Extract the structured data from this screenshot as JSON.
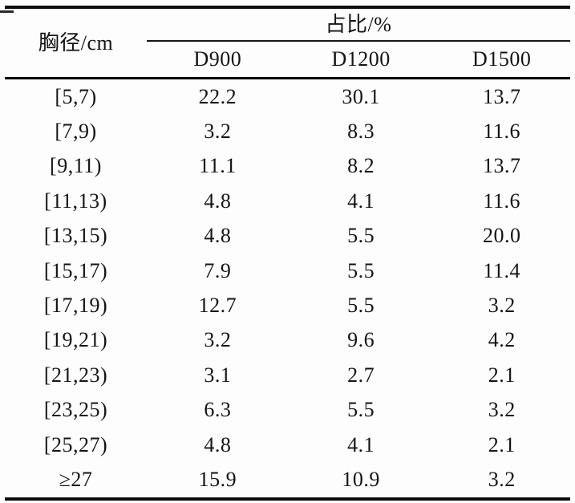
{
  "meta": {
    "background_color": "#fdfdfd",
    "text_color": "#141414",
    "rule_color": "#0c0c0c"
  },
  "table": {
    "row_header_label": "胸径/cm",
    "span_header_label": "占比/%",
    "column_headers": [
      "D900",
      "D1200",
      "D1500"
    ],
    "rows": [
      {
        "range": "[5,7)",
        "values": [
          "22.2",
          "30.1",
          "13.7"
        ]
      },
      {
        "range": "[7,9)",
        "values": [
          "3.2",
          "8.3",
          "11.6"
        ]
      },
      {
        "range": "[9,11)",
        "values": [
          "11.1",
          "8.2",
          "13.7"
        ]
      },
      {
        "range": "[11,13)",
        "values": [
          "4.8",
          "4.1",
          "11.6"
        ]
      },
      {
        "range": "[13,15)",
        "values": [
          "4.8",
          "5.5",
          "20.0"
        ]
      },
      {
        "range": "[15,17)",
        "values": [
          "7.9",
          "5.5",
          "11.4"
        ]
      },
      {
        "range": "[17,19)",
        "values": [
          "12.7",
          "5.5",
          "3.2"
        ]
      },
      {
        "range": "[19,21)",
        "values": [
          "3.2",
          "9.6",
          "4.2"
        ]
      },
      {
        "range": "[21,23)",
        "values": [
          "3.1",
          "2.7",
          "2.1"
        ]
      },
      {
        "range": "[23,25)",
        "values": [
          "6.3",
          "5.5",
          "3.2"
        ]
      },
      {
        "range": "[25,27)",
        "values": [
          "4.8",
          "4.1",
          "2.1"
        ]
      },
      {
        "range": "≥27",
        "values": [
          "15.9",
          "10.9",
          "3.2"
        ]
      }
    ]
  }
}
